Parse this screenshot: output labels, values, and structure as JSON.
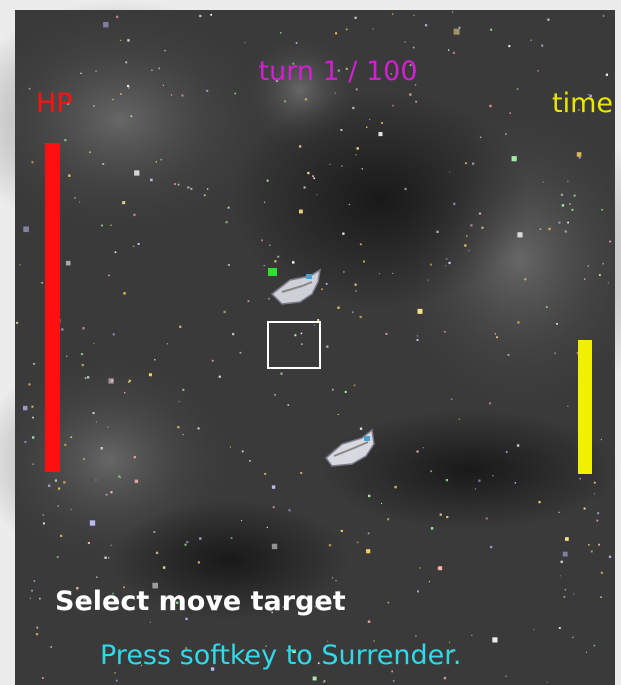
{
  "hud": {
    "turn": "turn 1 / 100",
    "hp_label": "HP",
    "time_label": "time"
  },
  "messages": {
    "prompt": "Select move target",
    "hint": "Press softkey to Surrender."
  }
}
